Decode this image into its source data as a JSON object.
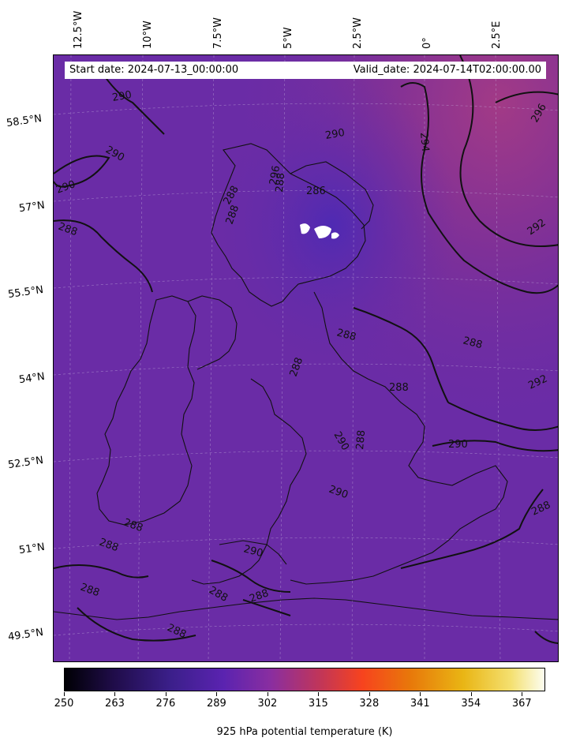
{
  "map": {
    "start_date": "Start date: 2024-07-13_00:00:00",
    "valid_date": "Valid_date: 2024-07-14T02:00:00.00",
    "lon_labels": [
      "12.5°W",
      "10°W",
      "7.5°W",
      "5°W",
      "2.5°W",
      "0°",
      "2.5°E"
    ],
    "lat_labels": [
      "58.5°N",
      "57°N",
      "55.5°N",
      "54°N",
      "52.5°N",
      "51°N",
      "49.5°N"
    ],
    "contour_labels": [
      "290",
      "290",
      "290",
      "288",
      "290",
      "288",
      "288",
      "296",
      "286",
      "294",
      "296",
      "292",
      "288",
      "288",
      "288",
      "288",
      "288",
      "292",
      "290",
      "288",
      "290",
      "290",
      "288",
      "288",
      "288",
      "290",
      "288",
      "288"
    ],
    "field_colors": {
      "background": "#6a2ca6",
      "warm": "#8e3396",
      "cool": "#5a2cae"
    }
  },
  "colorbar": {
    "ticks": [
      "250",
      "263",
      "276",
      "289",
      "302",
      "315",
      "328",
      "341",
      "354",
      "367"
    ],
    "label": "925 hPa potential temperature (K)",
    "min": 250,
    "max": 373
  }
}
